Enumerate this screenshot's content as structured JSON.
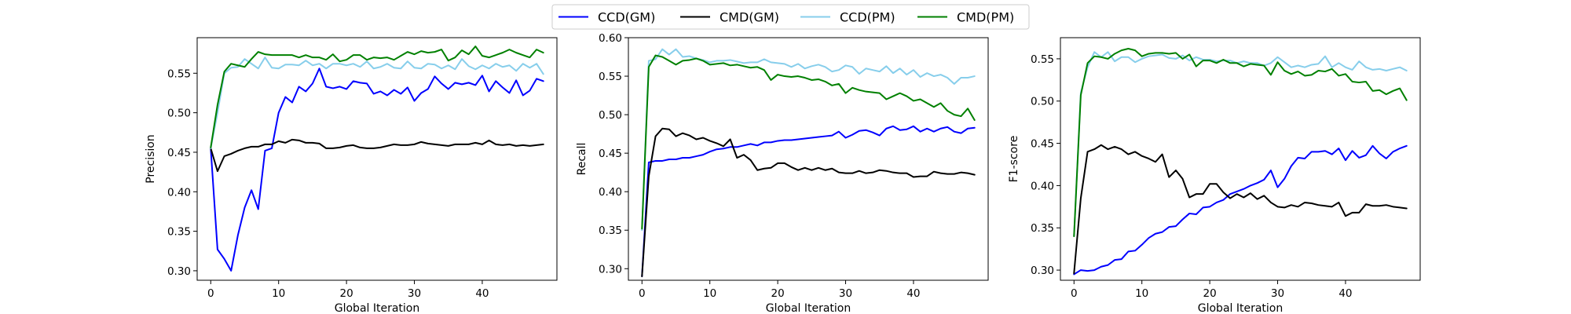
{
  "chart_data": [
    {
      "type": "line",
      "xlabel": "Global Iteration",
      "ylabel": "Precision",
      "xlim": [
        -2,
        51
      ],
      "ylim": [
        0.288,
        0.595
      ],
      "xticks": [
        0,
        10,
        20,
        30,
        40
      ],
      "yticks": [
        0.3,
        0.35,
        0.4,
        0.45,
        0.5,
        0.55
      ],
      "grid": false,
      "x": [
        0,
        1,
        2,
        3,
        4,
        5,
        6,
        7,
        8,
        9,
        10,
        11,
        12,
        13,
        14,
        15,
        16,
        17,
        18,
        19,
        20,
        21,
        22,
        23,
        24,
        25,
        26,
        27,
        28,
        29,
        30,
        31,
        32,
        33,
        34,
        35,
        36,
        37,
        38,
        39,
        40,
        41,
        42,
        43,
        44,
        45,
        46,
        47,
        48,
        49
      ],
      "series": [
        {
          "name": "CCD(GM)",
          "color": "#0000ff",
          "values": [
            0.455,
            0.327,
            0.315,
            0.3,
            0.345,
            0.38,
            0.402,
            0.378,
            0.452,
            0.455,
            0.5,
            0.52,
            0.513,
            0.533,
            0.527,
            0.537,
            0.556,
            0.533,
            0.531,
            0.533,
            0.53,
            0.54,
            0.538,
            0.537,
            0.524,
            0.527,
            0.522,
            0.529,
            0.524,
            0.532,
            0.515,
            0.525,
            0.53,
            0.546,
            0.537,
            0.53,
            0.538,
            0.536,
            0.538,
            0.535,
            0.547,
            0.527,
            0.54,
            0.532,
            0.525,
            0.541,
            0.522,
            0.528,
            0.543,
            0.54
          ]
        },
        {
          "name": "CMD(GM)",
          "color": "#000000",
          "values": [
            0.455,
            0.426,
            0.445,
            0.448,
            0.452,
            0.455,
            0.457,
            0.457,
            0.46,
            0.46,
            0.464,
            0.462,
            0.466,
            0.465,
            0.462,
            0.462,
            0.461,
            0.455,
            0.455,
            0.456,
            0.458,
            0.459,
            0.456,
            0.455,
            0.455,
            0.456,
            0.458,
            0.46,
            0.459,
            0.459,
            0.46,
            0.463,
            0.461,
            0.46,
            0.459,
            0.458,
            0.46,
            0.46,
            0.46,
            0.462,
            0.46,
            0.465,
            0.46,
            0.459,
            0.46,
            0.458,
            0.459,
            0.458,
            0.459,
            0.46
          ]
        },
        {
          "name": "CCD(PM)",
          "color": "#87ceeb",
          "values": [
            0.455,
            0.5,
            0.55,
            0.557,
            0.558,
            0.568,
            0.562,
            0.556,
            0.57,
            0.557,
            0.556,
            0.561,
            0.561,
            0.56,
            0.566,
            0.56,
            0.562,
            0.556,
            0.562,
            0.562,
            0.56,
            0.562,
            0.558,
            0.565,
            0.556,
            0.558,
            0.562,
            0.557,
            0.556,
            0.565,
            0.557,
            0.556,
            0.562,
            0.561,
            0.556,
            0.56,
            0.555,
            0.568,
            0.559,
            0.555,
            0.56,
            0.556,
            0.562,
            0.558,
            0.56,
            0.553,
            0.562,
            0.557,
            0.562,
            0.549
          ]
        },
        {
          "name": "CMD(PM)",
          "color": "#008000",
          "values": [
            0.456,
            0.51,
            0.552,
            0.562,
            0.56,
            0.558,
            0.568,
            0.577,
            0.574,
            0.573,
            0.573,
            0.573,
            0.573,
            0.57,
            0.573,
            0.57,
            0.57,
            0.567,
            0.574,
            0.565,
            0.567,
            0.573,
            0.573,
            0.567,
            0.57,
            0.569,
            0.57,
            0.567,
            0.572,
            0.577,
            0.574,
            0.578,
            0.576,
            0.577,
            0.58,
            0.566,
            0.57,
            0.579,
            0.574,
            0.584,
            0.572,
            0.57,
            0.573,
            0.576,
            0.58,
            0.576,
            0.573,
            0.57,
            0.58,
            0.576
          ]
        }
      ]
    },
    {
      "type": "line",
      "xlabel": "Global Iteration",
      "ylabel": "Recall",
      "xlim": [
        -2,
        51
      ],
      "ylim": [
        0.285,
        0.6
      ],
      "xticks": [
        0,
        10,
        20,
        30,
        40
      ],
      "yticks": [
        0.3,
        0.35,
        0.4,
        0.45,
        0.5,
        0.55,
        0.6
      ],
      "grid": false,
      "x": [
        0,
        1,
        2,
        3,
        4,
        5,
        6,
        7,
        8,
        9,
        10,
        11,
        12,
        13,
        14,
        15,
        16,
        17,
        18,
        19,
        20,
        21,
        22,
        23,
        24,
        25,
        26,
        27,
        28,
        29,
        30,
        31,
        32,
        33,
        34,
        35,
        36,
        37,
        38,
        39,
        40,
        41,
        42,
        43,
        44,
        45,
        46,
        47,
        48,
        49
      ],
      "series": [
        {
          "name": "CCD(GM)",
          "color": "#0000ff",
          "values": [
            0.29,
            0.438,
            0.44,
            0.44,
            0.442,
            0.442,
            0.444,
            0.444,
            0.446,
            0.448,
            0.452,
            0.455,
            0.456,
            0.458,
            0.458,
            0.46,
            0.462,
            0.46,
            0.464,
            0.464,
            0.466,
            0.467,
            0.467,
            0.468,
            0.469,
            0.47,
            0.471,
            0.472,
            0.473,
            0.478,
            0.47,
            0.474,
            0.479,
            0.48,
            0.477,
            0.473,
            0.482,
            0.485,
            0.48,
            0.481,
            0.485,
            0.478,
            0.482,
            0.478,
            0.482,
            0.484,
            0.478,
            0.476,
            0.482,
            0.483
          ]
        },
        {
          "name": "CMD(GM)",
          "color": "#000000",
          "values": [
            0.29,
            0.42,
            0.472,
            0.482,
            0.481,
            0.472,
            0.476,
            0.473,
            0.468,
            0.47,
            0.466,
            0.463,
            0.459,
            0.468,
            0.444,
            0.448,
            0.441,
            0.428,
            0.43,
            0.431,
            0.437,
            0.437,
            0.432,
            0.428,
            0.431,
            0.428,
            0.431,
            0.428,
            0.43,
            0.425,
            0.424,
            0.424,
            0.427,
            0.424,
            0.425,
            0.428,
            0.427,
            0.425,
            0.424,
            0.424,
            0.419,
            0.42,
            0.42,
            0.426,
            0.424,
            0.423,
            0.423,
            0.425,
            0.424,
            0.422
          ]
        },
        {
          "name": "CCD(PM)",
          "color": "#87ceeb",
          "values": [
            0.35,
            0.57,
            0.572,
            0.585,
            0.578,
            0.585,
            0.575,
            0.576,
            0.573,
            0.571,
            0.568,
            0.57,
            0.57,
            0.571,
            0.569,
            0.567,
            0.568,
            0.568,
            0.572,
            0.568,
            0.567,
            0.566,
            0.562,
            0.566,
            0.56,
            0.563,
            0.565,
            0.562,
            0.556,
            0.558,
            0.564,
            0.562,
            0.553,
            0.56,
            0.558,
            0.556,
            0.563,
            0.554,
            0.56,
            0.552,
            0.558,
            0.549,
            0.554,
            0.55,
            0.552,
            0.548,
            0.54,
            0.548,
            0.548,
            0.55
          ]
        },
        {
          "name": "CMD(PM)",
          "color": "#008000",
          "values": [
            0.352,
            0.562,
            0.577,
            0.575,
            0.57,
            0.565,
            0.57,
            0.571,
            0.573,
            0.57,
            0.565,
            0.566,
            0.567,
            0.564,
            0.565,
            0.563,
            0.561,
            0.562,
            0.558,
            0.545,
            0.552,
            0.55,
            0.549,
            0.55,
            0.548,
            0.545,
            0.546,
            0.543,
            0.538,
            0.54,
            0.528,
            0.535,
            0.532,
            0.53,
            0.529,
            0.528,
            0.52,
            0.524,
            0.528,
            0.524,
            0.518,
            0.52,
            0.515,
            0.51,
            0.515,
            0.505,
            0.5,
            0.498,
            0.508,
            0.493
          ]
        }
      ]
    },
    {
      "type": "line",
      "xlabel": "Global Iteration",
      "ylabel": "F1-score",
      "xlim": [
        -2,
        51
      ],
      "ylim": [
        0.288,
        0.575
      ],
      "xticks": [
        0,
        10,
        20,
        30,
        40
      ],
      "yticks": [
        0.3,
        0.35,
        0.4,
        0.45,
        0.5,
        0.55
      ],
      "grid": false,
      "x": [
        0,
        1,
        2,
        3,
        4,
        5,
        6,
        7,
        8,
        9,
        10,
        11,
        12,
        13,
        14,
        15,
        16,
        17,
        18,
        19,
        20,
        21,
        22,
        23,
        24,
        25,
        26,
        27,
        28,
        29,
        30,
        31,
        32,
        33,
        34,
        35,
        36,
        37,
        38,
        39,
        40,
        41,
        42,
        43,
        44,
        45,
        46,
        47,
        48,
        49
      ],
      "series": [
        {
          "name": "CCD(GM)",
          "color": "#0000ff",
          "values": [
            0.295,
            0.3,
            0.299,
            0.3,
            0.304,
            0.306,
            0.312,
            0.313,
            0.322,
            0.323,
            0.33,
            0.338,
            0.343,
            0.345,
            0.351,
            0.352,
            0.36,
            0.367,
            0.366,
            0.374,
            0.375,
            0.38,
            0.383,
            0.39,
            0.393,
            0.396,
            0.4,
            0.403,
            0.407,
            0.418,
            0.398,
            0.408,
            0.423,
            0.433,
            0.432,
            0.44,
            0.44,
            0.441,
            0.437,
            0.444,
            0.43,
            0.441,
            0.433,
            0.436,
            0.447,
            0.438,
            0.432,
            0.44,
            0.444,
            0.447
          ]
        },
        {
          "name": "CMD(GM)",
          "color": "#000000",
          "values": [
            0.296,
            0.385,
            0.44,
            0.443,
            0.448,
            0.443,
            0.446,
            0.443,
            0.437,
            0.44,
            0.435,
            0.432,
            0.428,
            0.437,
            0.41,
            0.418,
            0.408,
            0.386,
            0.39,
            0.39,
            0.402,
            0.402,
            0.392,
            0.385,
            0.39,
            0.386,
            0.391,
            0.384,
            0.388,
            0.38,
            0.375,
            0.374,
            0.377,
            0.375,
            0.38,
            0.379,
            0.377,
            0.376,
            0.375,
            0.38,
            0.364,
            0.368,
            0.368,
            0.378,
            0.376,
            0.376,
            0.377,
            0.375,
            0.374,
            0.373
          ]
        },
        {
          "name": "CCD(PM)",
          "color": "#87ceeb",
          "values": [
            0.34,
            0.51,
            0.54,
            0.558,
            0.552,
            0.558,
            0.547,
            0.552,
            0.552,
            0.546,
            0.55,
            0.553,
            0.554,
            0.555,
            0.551,
            0.55,
            0.554,
            0.548,
            0.552,
            0.549,
            0.549,
            0.547,
            0.548,
            0.548,
            0.545,
            0.547,
            0.545,
            0.545,
            0.542,
            0.545,
            0.552,
            0.546,
            0.54,
            0.542,
            0.54,
            0.543,
            0.544,
            0.553,
            0.54,
            0.545,
            0.54,
            0.537,
            0.547,
            0.54,
            0.537,
            0.538,
            0.536,
            0.538,
            0.54,
            0.536
          ]
        },
        {
          "name": "CMD(PM)",
          "color": "#008000",
          "values": [
            0.34,
            0.507,
            0.545,
            0.553,
            0.552,
            0.55,
            0.556,
            0.56,
            0.562,
            0.56,
            0.553,
            0.556,
            0.557,
            0.557,
            0.556,
            0.557,
            0.55,
            0.555,
            0.541,
            0.548,
            0.548,
            0.545,
            0.549,
            0.545,
            0.545,
            0.541,
            0.544,
            0.543,
            0.542,
            0.531,
            0.546,
            0.536,
            0.532,
            0.535,
            0.53,
            0.531,
            0.536,
            0.535,
            0.538,
            0.53,
            0.532,
            0.523,
            0.522,
            0.523,
            0.512,
            0.513,
            0.508,
            0.512,
            0.515,
            0.501
          ]
        }
      ]
    }
  ],
  "legend": {
    "position": "top-center",
    "entries": [
      {
        "label": "CCD(GM)",
        "color": "#0000ff"
      },
      {
        "label": "CMD(GM)",
        "color": "#000000"
      },
      {
        "label": "CCD(PM)",
        "color": "#87ceeb"
      },
      {
        "label": "CMD(PM)",
        "color": "#008000"
      }
    ]
  }
}
